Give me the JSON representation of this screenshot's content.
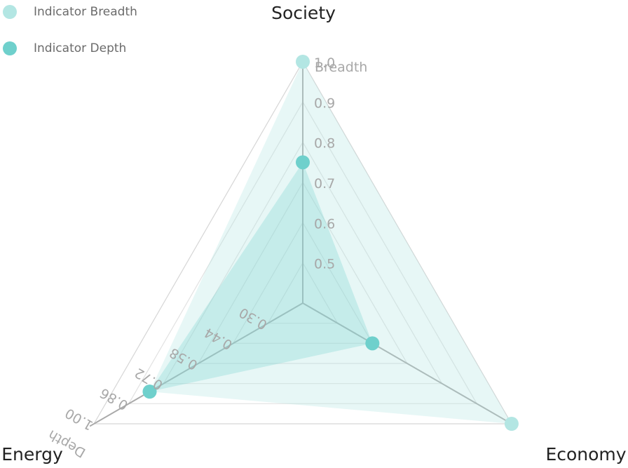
{
  "chart_data": {
    "type": "radar",
    "axes": [
      "Society",
      "Economy",
      "Energy"
    ],
    "series": [
      {
        "name": "Indicator Breadth",
        "color": "#b3e6e3",
        "values": [
          1.0,
          1.0,
          0.84
        ]
      },
      {
        "name": "Indicator Depth",
        "color": "#6fd0cc",
        "values": [
          0.75,
          0.6,
          0.84
        ]
      }
    ],
    "breadth_scale": {
      "label": "Breadth",
      "ticks": [
        "1.0",
        "0.9",
        "0.8",
        "0.7",
        "0.6",
        "0.5"
      ]
    },
    "depth_scale": {
      "label": "Depth",
      "ticks": [
        "1.00",
        "0.86",
        "0.72",
        "0.58",
        "0.44",
        "0.30"
      ]
    },
    "grid": true,
    "legend_position": "top-left"
  },
  "legend": [
    {
      "label": "Indicator Breadth",
      "color": "#b3e6e3"
    },
    {
      "label": "Indicator Depth",
      "color": "#6fd0cc"
    }
  ]
}
